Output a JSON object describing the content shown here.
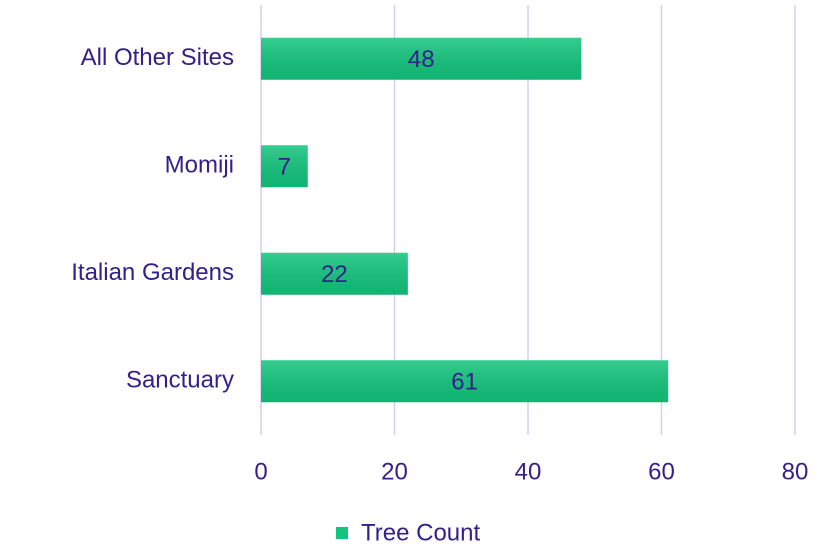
{
  "chart_data": {
    "type": "bar",
    "orientation": "horizontal",
    "categories": [
      "All Other Sites",
      "Momiji",
      "Italian Gardens",
      "Sanctuary"
    ],
    "series": [
      {
        "name": "Tree Count",
        "color": "#12c47c",
        "values": [
          48,
          7,
          22,
          61
        ]
      }
    ],
    "xlim": [
      0,
      80
    ],
    "xticks": [
      0,
      20,
      40,
      60,
      80
    ],
    "grid": true,
    "legend": "bottom"
  }
}
